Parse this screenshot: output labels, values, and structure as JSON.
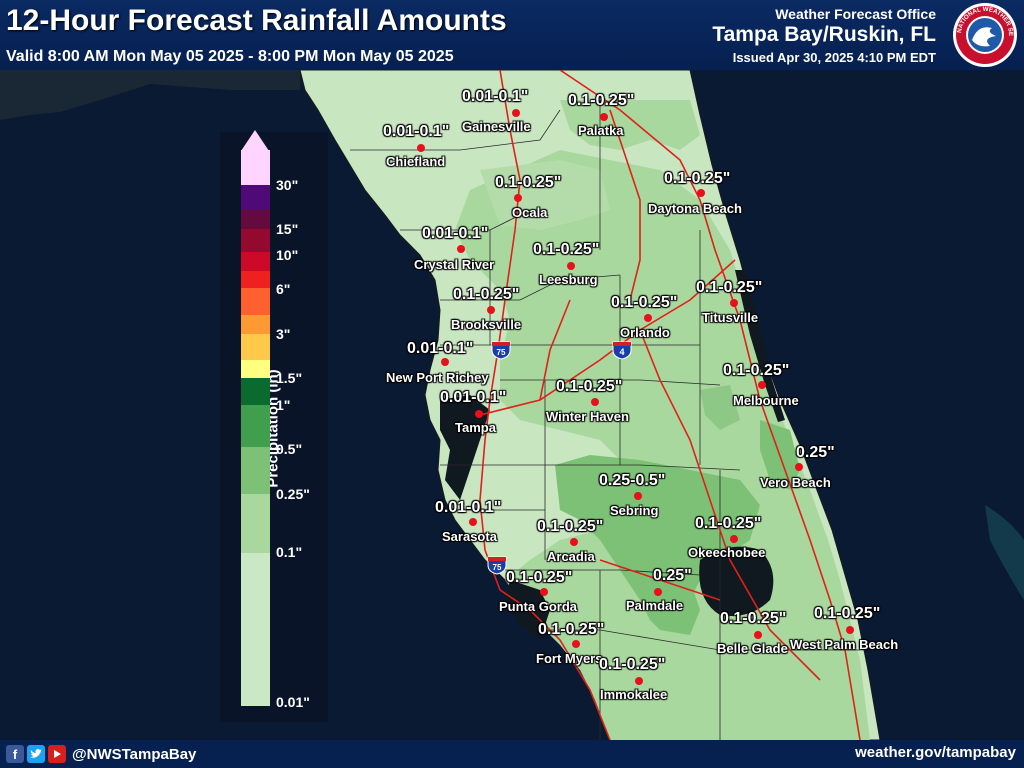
{
  "header": {
    "title": "12-Hour Forecast Rainfall Amounts",
    "valid": "Valid 8:00 AM Mon May 05 2025 - 8:00 PM Mon May 05 2025",
    "office_line1": "Weather Forecast Office",
    "office_line2": "Tampa Bay/Ruskin, FL",
    "issued": "Issued Apr 30, 2025 4:10 PM EDT",
    "logo_text": "NATIONAL WEATHER SERVICE"
  },
  "legend": {
    "title": "Precipitation (in)",
    "ticks": [
      "30\"",
      "15\"",
      "10\"",
      "6\"",
      "3\"",
      "1.5\"",
      "1\"",
      "0.5\"",
      "0.25\"",
      "0.1\"",
      "0.01\""
    ],
    "colors": {
      "0.01-0.1": "#cbe8c5",
      "0.1-0.25": "#a8d89e",
      "0.25-0.5": "#7cc175",
      "0.5-1": "#3f9f4c",
      "1-1.5": "#0b6b2e",
      "1.5-2": "#ffff80",
      "2-3": "#ffc94a",
      "3-4": "#ff9933",
      "4-6": "#ff6030",
      "6-8": "#ee2020",
      "8-10": "#cc0a28",
      "10-15": "#930a2e",
      "15-20": "#640a3c",
      "20-30": "#500a78",
      "30+": "#ffd4ff"
    }
  },
  "locations": [
    {
      "name": "Gainesville",
      "amount": "0.01-0.1\""
    },
    {
      "name": "Palatka",
      "amount": "0.1-0.25\""
    },
    {
      "name": "Chiefland",
      "amount": "0.01-0.1\""
    },
    {
      "name": "Ocala",
      "amount": "0.1-0.25\""
    },
    {
      "name": "Daytona Beach",
      "amount": "0.1-0.25\""
    },
    {
      "name": "Crystal River",
      "amount": "0.01-0.1\""
    },
    {
      "name": "Leesburg",
      "amount": "0.1-0.25\""
    },
    {
      "name": "Brooksville",
      "amount": "0.1-0.25\""
    },
    {
      "name": "Orlando",
      "amount": "0.1-0.25\""
    },
    {
      "name": "Titusville",
      "amount": "0.1-0.25\""
    },
    {
      "name": "New Port Richey",
      "amount": "0.01-0.1\""
    },
    {
      "name": "Melbourne",
      "amount": "0.1-0.25\""
    },
    {
      "name": "Tampa",
      "amount": "0.01-0.1\""
    },
    {
      "name": "Winter Haven",
      "amount": "0.1-0.25\""
    },
    {
      "name": "Vero Beach",
      "amount": "0.25\""
    },
    {
      "name": "Sebring",
      "amount": "0.25-0.5\""
    },
    {
      "name": "Sarasota",
      "amount": "0.01-0.1\""
    },
    {
      "name": "Arcadia",
      "amount": "0.1-0.25\""
    },
    {
      "name": "Okeechobee",
      "amount": "0.1-0.25\""
    },
    {
      "name": "Punta Gorda",
      "amount": "0.1-0.25\""
    },
    {
      "name": "Palmdale",
      "amount": "0.25\""
    },
    {
      "name": "Belle Glade",
      "amount": "0.1-0.25\""
    },
    {
      "name": "West Palm Beach",
      "amount": "0.1-0.25\""
    },
    {
      "name": "Fort Myers",
      "amount": "0.1-0.25\""
    },
    {
      "name": "Immokalee",
      "amount": "0.1-0.25\""
    }
  ],
  "highways": {
    "i75": "75",
    "i4": "4"
  },
  "footer": {
    "handle": "@NWSTampaBay",
    "website": "weather.gov/tampabay"
  },
  "colors": {
    "ocean": "#0b1a33",
    "land_outside": "#1c2a3a",
    "header_bg": "#0a2a63",
    "roads": "#e0201a",
    "city_dot": "#e8101a"
  },
  "icons": [
    "facebook-icon",
    "twitter-icon",
    "youtube-icon",
    "nws-logo"
  ]
}
